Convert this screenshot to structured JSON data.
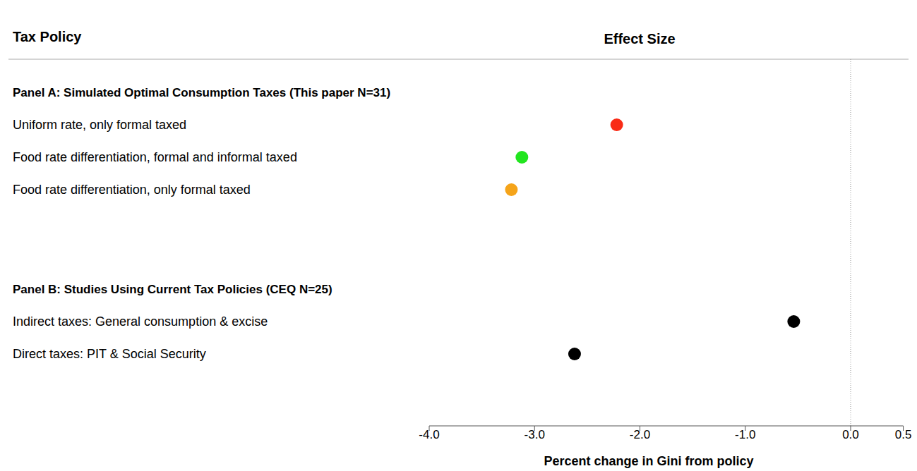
{
  "chart_data": {
    "type": "dot",
    "orientation": "horizontal",
    "title": "Effect Size",
    "row_header": "Tax Policy",
    "x_label": "Percent change in Gini from policy",
    "xlim": [
      -4,
      0.5
    ],
    "xticks": [
      {
        "value": -4,
        "label": "-4.0"
      },
      {
        "value": -3,
        "label": "-3.0"
      },
      {
        "value": -2,
        "label": "-2.0"
      },
      {
        "value": -1,
        "label": "-1.0"
      },
      {
        "value": 0,
        "label": "0.0"
      },
      0.5
    ],
    "reference_x": 0,
    "marker": "circle",
    "panels": [
      {
        "title": "Panel A: Simulated Optimal Consumption Taxes (This paper N=31)",
        "categories": [
          "Uniform rate, only formal taxed",
          "Food rate differentiation, formal and informal taxed",
          "Food rate differentiation, only formal taxed"
        ],
        "values": [
          -2.22,
          -3.12,
          -3.22
        ],
        "colors": [
          "#f92b16",
          "#22e51f",
          "#f5a41a"
        ]
      },
      {
        "title": "Panel B: Studies Using Current Tax Policies (CEQ N=25)",
        "categories": [
          "Indirect taxes: General consumption & excise",
          "Direct taxes: PIT & Social Security"
        ],
        "values": [
          -0.54,
          -2.62
        ],
        "colors": [
          "#000000",
          "#000000"
        ]
      }
    ]
  }
}
